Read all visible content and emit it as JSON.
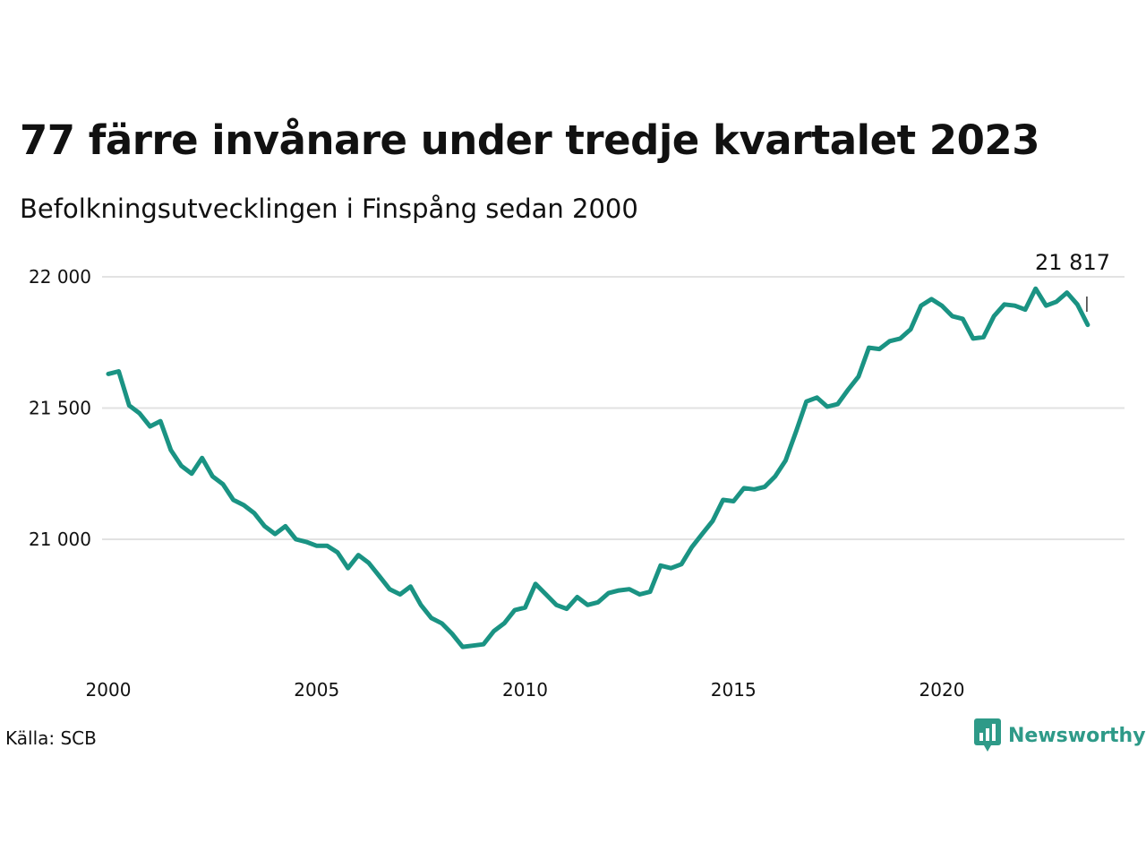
{
  "header": {
    "title": "77 färre invånare under tredje kvartalet 2023",
    "subtitle": "Befolkningsutvecklingen i Finspång sedan 2000"
  },
  "footer": {
    "source": "Källa: SCB",
    "brand": "Newsworthy",
    "brand_icon": "newsworthy-logo-icon"
  },
  "colors": {
    "line": "#1a9383",
    "grid": "#e2e2e2",
    "brand": "#2e9a88"
  },
  "chart_data": {
    "type": "line",
    "title": "77 färre invånare under tredje kvartalet 2023",
    "subtitle": "Befolkningsutvecklingen i Finspång sedan 2000",
    "xlabel": "",
    "ylabel": "",
    "grid": true,
    "legend": "none",
    "xlim": [
      2000,
      2023.75
    ],
    "ylim": [
      20600,
      22000
    ],
    "x_ticks": [
      2000,
      2005,
      2010,
      2015,
      2020
    ],
    "x_tick_labels": [
      "2000",
      "2005",
      "2010",
      "2015",
      "2020"
    ],
    "y_ticks": [
      21000,
      21500,
      22000
    ],
    "y_tick_labels": [
      "21 000",
      "21 500",
      "22 000"
    ],
    "end_label": "21 817",
    "series": [
      {
        "x": [
          2000.0,
          2000.25,
          2000.5,
          2000.75,
          2001.0,
          2001.25,
          2001.5,
          2001.75,
          2002.0,
          2002.25,
          2002.5,
          2002.75,
          2003.0,
          2003.25,
          2003.5,
          2003.75,
          2004.0,
          2004.25,
          2004.5,
          2004.75,
          2005.0,
          2005.25,
          2005.5,
          2005.75,
          2006.0,
          2006.25,
          2006.5,
          2006.75,
          2007.0,
          2007.25,
          2007.5,
          2007.75,
          2008.0,
          2008.25,
          2008.5,
          2008.75,
          2009.0,
          2009.25,
          2009.5,
          2009.75,
          2010.0,
          2010.25,
          2010.5,
          2010.75,
          2011.0,
          2011.25,
          2011.5,
          2011.75,
          2012.0,
          2012.25,
          2012.5,
          2012.75,
          2013.0,
          2013.25,
          2013.5,
          2013.75,
          2014.0,
          2014.25,
          2014.5,
          2014.75,
          2015.0,
          2015.25,
          2015.5,
          2015.75,
          2016.0,
          2016.25,
          2016.5,
          2016.75,
          2017.0,
          2017.25,
          2017.5,
          2017.75,
          2018.0,
          2018.25,
          2018.5,
          2018.75,
          2019.0,
          2019.25,
          2019.5,
          2019.75,
          2020.0,
          2020.25,
          2020.5,
          2020.75,
          2021.0,
          2021.25,
          2021.5,
          2021.75,
          2022.0,
          2022.25,
          2022.5,
          2022.75,
          2023.0,
          2023.25,
          2023.5
        ],
        "y": [
          21630,
          21640,
          21510,
          21480,
          21430,
          21450,
          21340,
          21280,
          21250,
          21310,
          21240,
          21210,
          21150,
          21130,
          21100,
          21050,
          21020,
          21050,
          21000,
          20990,
          20975,
          20975,
          20950,
          20890,
          20940,
          20910,
          20860,
          20810,
          20790,
          20820,
          20750,
          20700,
          20680,
          20640,
          20590,
          20595,
          20600,
          20650,
          20680,
          20730,
          20740,
          20830,
          20790,
          20750,
          20735,
          20780,
          20750,
          20760,
          20795,
          20805,
          20810,
          20790,
          20800,
          20900,
          20890,
          20905,
          20970,
          21020,
          21070,
          21150,
          21145,
          21195,
          21190,
          21200,
          21240,
          21300,
          21410,
          21525,
          21540,
          21505,
          21515,
          21570,
          21620,
          21730,
          21725,
          21755,
          21765,
          21800,
          21890,
          21915,
          21890,
          21850,
          21840,
          21765,
          21770,
          21850,
          21895,
          21890,
          21875,
          21955,
          21890,
          21905,
          21940,
          21895,
          21817
        ]
      }
    ]
  }
}
